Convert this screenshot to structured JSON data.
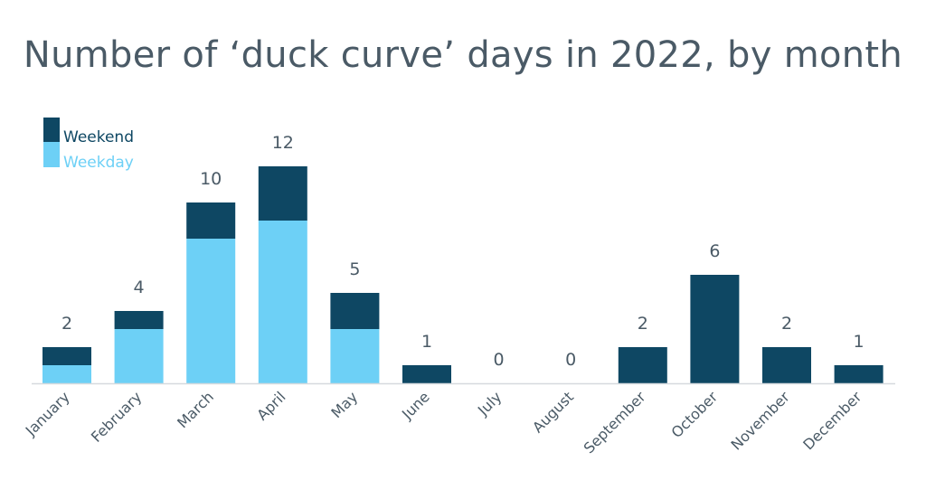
{
  "chart_data": {
    "type": "bar",
    "stacked": true,
    "title": "Number of ‘duck curve’ days in 2022, by month",
    "xlabel": "",
    "ylabel": "",
    "ylim": [
      0,
      12
    ],
    "grid": false,
    "legend_position": "top-left",
    "categories": [
      "January",
      "February",
      "March",
      "April",
      "May",
      "June",
      "July",
      "August",
      "September",
      "October",
      "November",
      "December"
    ],
    "series": [
      {
        "name": "Weekday",
        "color": "#6dd0f6",
        "values": [
          1,
          3,
          8,
          9,
          3,
          0,
          0,
          0,
          0,
          0,
          0,
          0
        ]
      },
      {
        "name": "Weekend",
        "color": "#0e4763",
        "values": [
          1,
          1,
          2,
          3,
          2,
          1,
          0,
          0,
          2,
          6,
          2,
          1
        ]
      }
    ],
    "totals": [
      "2",
      "4",
      "10",
      "12",
      "5",
      "1",
      "0",
      "0",
      "2",
      "6",
      "2",
      "1"
    ]
  }
}
